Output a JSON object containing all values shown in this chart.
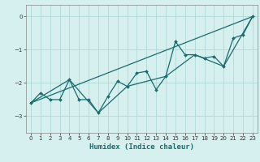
{
  "xlabel": "Humidex (Indice chaleur)",
  "bg_color": "#d6f0f0",
  "grid_color": "#b0d8d8",
  "line_color": "#1a6b6b",
  "xlim": [
    -0.5,
    23.5
  ],
  "ylim": [
    -3.5,
    0.35
  ],
  "xticks": [
    0,
    1,
    2,
    3,
    4,
    5,
    6,
    7,
    8,
    9,
    10,
    11,
    12,
    13,
    14,
    15,
    16,
    17,
    18,
    19,
    20,
    21,
    22,
    23
  ],
  "yticks": [
    0,
    -1,
    -2,
    -3
  ],
  "line1_x": [
    0,
    1,
    2,
    3,
    4,
    5,
    6,
    7,
    8,
    9,
    10,
    11,
    12,
    13,
    14,
    15,
    16,
    17,
    18,
    19,
    20,
    21,
    22,
    23
  ],
  "line1_y": [
    -2.6,
    -2.3,
    -2.5,
    -2.5,
    -1.9,
    -2.5,
    -2.5,
    -2.9,
    -2.4,
    -1.95,
    -2.1,
    -1.7,
    -1.65,
    -2.2,
    -1.8,
    -0.75,
    -1.15,
    -1.15,
    -1.25,
    -1.2,
    -1.5,
    -0.65,
    -0.55,
    0.0
  ],
  "line2_x": [
    0,
    23
  ],
  "line2_y": [
    -2.6,
    0.0
  ],
  "line3_x": [
    0,
    4,
    7,
    10,
    14,
    17,
    20,
    23
  ],
  "line3_y": [
    -2.6,
    -1.9,
    -2.9,
    -2.1,
    -1.8,
    -1.15,
    -1.5,
    0.0
  ]
}
